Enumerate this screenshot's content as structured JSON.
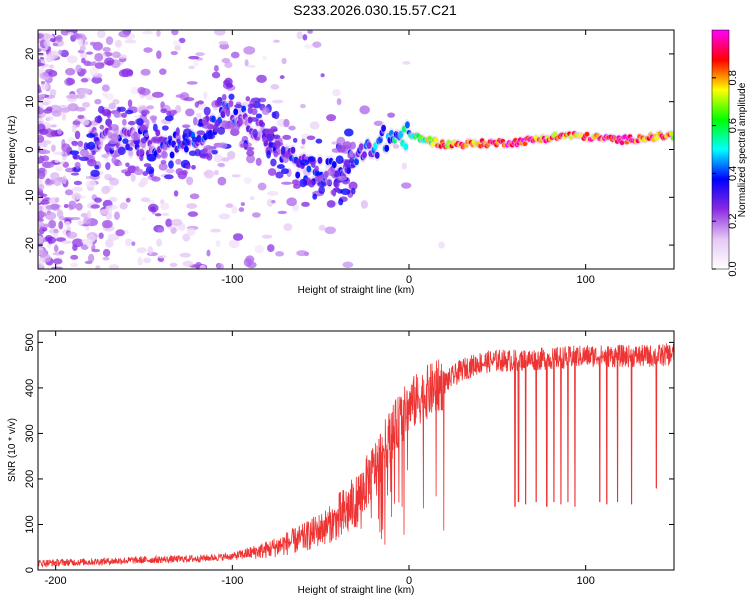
{
  "title": "S233.2026.030.15.57.C21",
  "chart_data": [
    {
      "type": "heatmap",
      "xlabel": "Height of straight line (km)",
      "ylabel": "Frequency (Hz)",
      "xlim": [
        -210,
        150
      ],
      "ylim": [
        -25,
        25
      ],
      "xticks": [
        -200,
        -100,
        0,
        100
      ],
      "yticks": [
        -20,
        -10,
        0,
        10,
        20
      ],
      "colorbar": {
        "label": "Normalized spectral amplitude",
        "range": [
          0,
          1
        ],
        "ticks": [
          "0.0",
          "0.2",
          "0.4",
          "0.6",
          "0.8"
        ],
        "colors": [
          "#ffffff",
          "#e6c8f5",
          "#8a2be2",
          "#0000ff",
          "#00ffff",
          "#00ff00",
          "#ffff00",
          "#ff0000",
          "#ff00ff"
        ]
      },
      "ridge": [
        {
          "x": -170,
          "freq": 2,
          "amp": 0.25
        },
        {
          "x": -130,
          "freq": 1,
          "amp": 0.3
        },
        {
          "x": -100,
          "freq": 8,
          "amp": 0.3
        },
        {
          "x": -80,
          "freq": 2,
          "amp": 0.25
        },
        {
          "x": -60,
          "freq": -4,
          "amp": 0.3
        },
        {
          "x": -40,
          "freq": -5,
          "amp": 0.3
        },
        {
          "x": -30,
          "freq": -2,
          "amp": 0.35
        },
        {
          "x": -15,
          "freq": 2,
          "amp": 0.4
        },
        {
          "x": 0,
          "freq": 3,
          "amp": 0.5
        },
        {
          "x": 20,
          "freq": 1,
          "amp": 0.8
        },
        {
          "x": 60,
          "freq": 1.5,
          "amp": 0.9
        },
        {
          "x": 90,
          "freq": 3,
          "amp": 0.8
        },
        {
          "x": 120,
          "freq": 2,
          "amp": 0.9
        },
        {
          "x": 150,
          "freq": 3,
          "amp": 0.8
        }
      ]
    },
    {
      "type": "line",
      "xlabel": "Height of straight line (km)",
      "ylabel": "SNR (10 * v/v)",
      "xlim": [
        -210,
        150
      ],
      "ylim": [
        0,
        525
      ],
      "xticks": [
        -200,
        -100,
        0,
        100
      ],
      "yticks": [
        0,
        100,
        200,
        300,
        400,
        500
      ],
      "color": "#ee3333",
      "series": [
        {
          "name": "SNR",
          "x": [
            -210,
            -180,
            -150,
            -120,
            -100,
            -80,
            -60,
            -40,
            -30,
            -20,
            -10,
            0,
            10,
            20,
            30,
            40,
            50,
            60,
            80,
            100,
            120,
            140,
            150
          ],
          "values": [
            15,
            18,
            22,
            25,
            30,
            45,
            70,
            110,
            150,
            220,
            300,
            360,
            390,
            410,
            440,
            455,
            460,
            460,
            465,
            470,
            470,
            470,
            475
          ]
        }
      ],
      "dropouts": [
        {
          "x": 60,
          "value": 140
        },
        {
          "x": 62,
          "value": 150
        },
        {
          "x": 66,
          "value": 145
        },
        {
          "x": 72,
          "value": 150
        },
        {
          "x": 78,
          "value": 140
        },
        {
          "x": 82,
          "value": 150
        },
        {
          "x": 86,
          "value": 145
        },
        {
          "x": 90,
          "value": 150
        },
        {
          "x": 94,
          "value": 140
        },
        {
          "x": 108,
          "value": 150
        },
        {
          "x": 112,
          "value": 145
        },
        {
          "x": 118,
          "value": 150
        },
        {
          "x": 126,
          "value": 145
        },
        {
          "x": 140,
          "value": 180
        }
      ]
    }
  ]
}
